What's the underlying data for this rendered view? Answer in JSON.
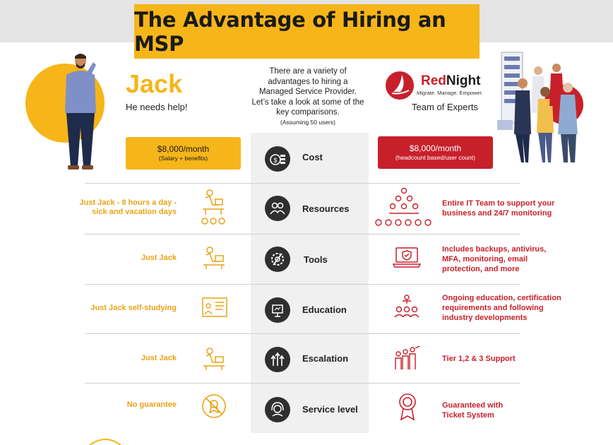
{
  "header": {
    "title": "The Advantage of Hiring an MSP"
  },
  "jack": {
    "name": "Jack",
    "subtitle": "He needs help!",
    "price": "$8,000/month",
    "price_note": "(Salary + benefits)"
  },
  "intro": {
    "text": "There are a variety of advantages to hiring a Managed Service Provider. Let’s take a look at some of the key comparisons.",
    "note": "(Assuming 50 users)"
  },
  "rednight": {
    "brand_red": "Red",
    "brand_dark": "Night",
    "tagline": "Migrate. Manage. Empower.",
    "team": "Team of Experts",
    "price": "$8,000/month",
    "price_note": "(headcount based/user count)"
  },
  "rows": [
    {
      "category": "Cost"
    },
    {
      "category": "Resources",
      "jack": "Just Jack - 8 hours a day - sick and vacation days",
      "msp": "Entire IT Team to support your business and 24/7 monitoring"
    },
    {
      "category": "Tools",
      "jack": "Just Jack",
      "msp": "Includes backups, antivirus, MFA, monitoring, email protection, and more"
    },
    {
      "category": "Education",
      "jack": "Just Jack self-studying",
      "msp": "Ongoing education, certification requirements and following industry developments"
    },
    {
      "category": "Escalation",
      "jack": "Just Jack",
      "msp": "Tier 1,2 & 3 Support"
    },
    {
      "category": "Service level",
      "jack": "No guarantee",
      "msp": "Guaranteed with Ticket System"
    }
  ],
  "colors": {
    "yellow": "#f6b519",
    "red": "#c8202b",
    "dark": "#2f2f2f"
  },
  "icons": [
    "coins-icon",
    "people-icon",
    "gear-wrench-icon",
    "presentation-icon",
    "arrows-up-icon",
    "headset-icon",
    "desk-worker-icon",
    "team-pyramid-icon",
    "laptop-shield-icon",
    "education-group-icon",
    "growth-team-icon",
    "award-ribbon-icon",
    "no-guarantee-icon",
    "classroom-icon"
  ]
}
